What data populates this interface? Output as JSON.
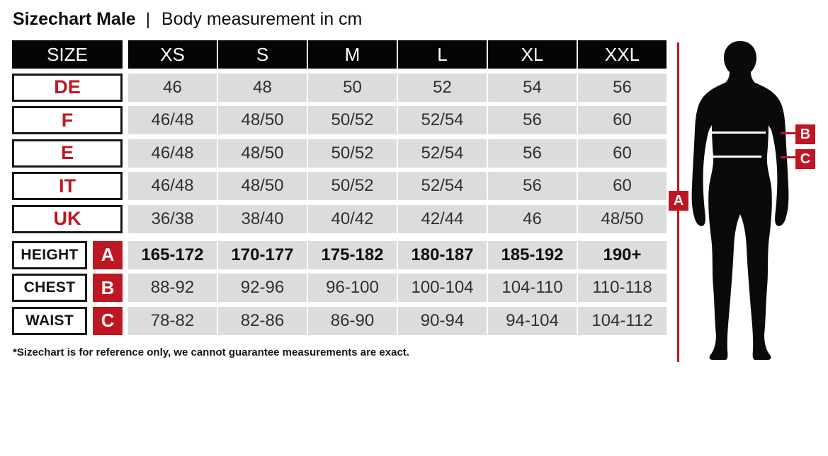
{
  "title": {
    "main": "Sizechart Male",
    "separator": "|",
    "subtitle": "Body measurement in cm"
  },
  "colors": {
    "accent_red": "#be1622",
    "header_black": "#050505",
    "cell_gray": "#dcdcdc"
  },
  "table": {
    "header": [
      "SIZE",
      "XS",
      "S",
      "M",
      "L",
      "XL",
      "XXL"
    ],
    "region_rows": [
      {
        "label": "DE",
        "values": [
          "46",
          "48",
          "50",
          "52",
          "54",
          "56"
        ]
      },
      {
        "label": "F",
        "values": [
          "46/48",
          "48/50",
          "50/52",
          "52/54",
          "56",
          "60"
        ]
      },
      {
        "label": "E",
        "values": [
          "46/48",
          "48/50",
          "50/52",
          "52/54",
          "56",
          "60"
        ]
      },
      {
        "label": "IT",
        "values": [
          "46/48",
          "48/50",
          "50/52",
          "52/54",
          "56",
          "60"
        ]
      },
      {
        "label": "UK",
        "values": [
          "36/38",
          "38/40",
          "40/42",
          "42/44",
          "46",
          "48/50"
        ]
      }
    ],
    "measure_rows": [
      {
        "label": "HEIGHT",
        "marker": "A",
        "bold": true,
        "values": [
          "165-172",
          "170-177",
          "175-182",
          "180-187",
          "185-192",
          "190+"
        ]
      },
      {
        "label": "CHEST",
        "marker": "B",
        "bold": false,
        "values": [
          "88-92",
          "92-96",
          "96-100",
          "100-104",
          "104-110",
          "110-118"
        ]
      },
      {
        "label": "WAIST",
        "marker": "C",
        "bold": false,
        "values": [
          "78-82",
          "82-86",
          "86-90",
          "90-94",
          "94-104",
          "104-112"
        ]
      }
    ]
  },
  "figure": {
    "markers": {
      "a": "A",
      "b": "B",
      "c": "C"
    }
  },
  "footnote": "*Sizechart is for reference only, we cannot guarantee measurements are exact.",
  "chart_data": {
    "type": "table",
    "title": "Sizechart Male | Body measurement in cm",
    "columns": [
      "SIZE",
      "XS",
      "S",
      "M",
      "L",
      "XL",
      "XXL"
    ],
    "rows": [
      [
        "DE",
        "46",
        "48",
        "50",
        "52",
        "54",
        "56"
      ],
      [
        "F",
        "46/48",
        "48/50",
        "50/52",
        "52/54",
        "56",
        "60"
      ],
      [
        "E",
        "46/48",
        "48/50",
        "50/52",
        "52/54",
        "56",
        "60"
      ],
      [
        "IT",
        "46/48",
        "48/50",
        "50/52",
        "52/54",
        "56",
        "60"
      ],
      [
        "UK",
        "36/38",
        "38/40",
        "40/42",
        "42/44",
        "46",
        "48/50"
      ],
      [
        "HEIGHT (A)",
        "165-172",
        "170-177",
        "175-182",
        "180-187",
        "185-192",
        "190+"
      ],
      [
        "CHEST (B)",
        "88-92",
        "92-96",
        "96-100",
        "100-104",
        "104-110",
        "110-118"
      ],
      [
        "WAIST (C)",
        "78-82",
        "82-86",
        "86-90",
        "90-94",
        "94-104",
        "104-112"
      ]
    ],
    "footnote": "*Sizechart is for reference only, we cannot guarantee measurements are exact."
  }
}
